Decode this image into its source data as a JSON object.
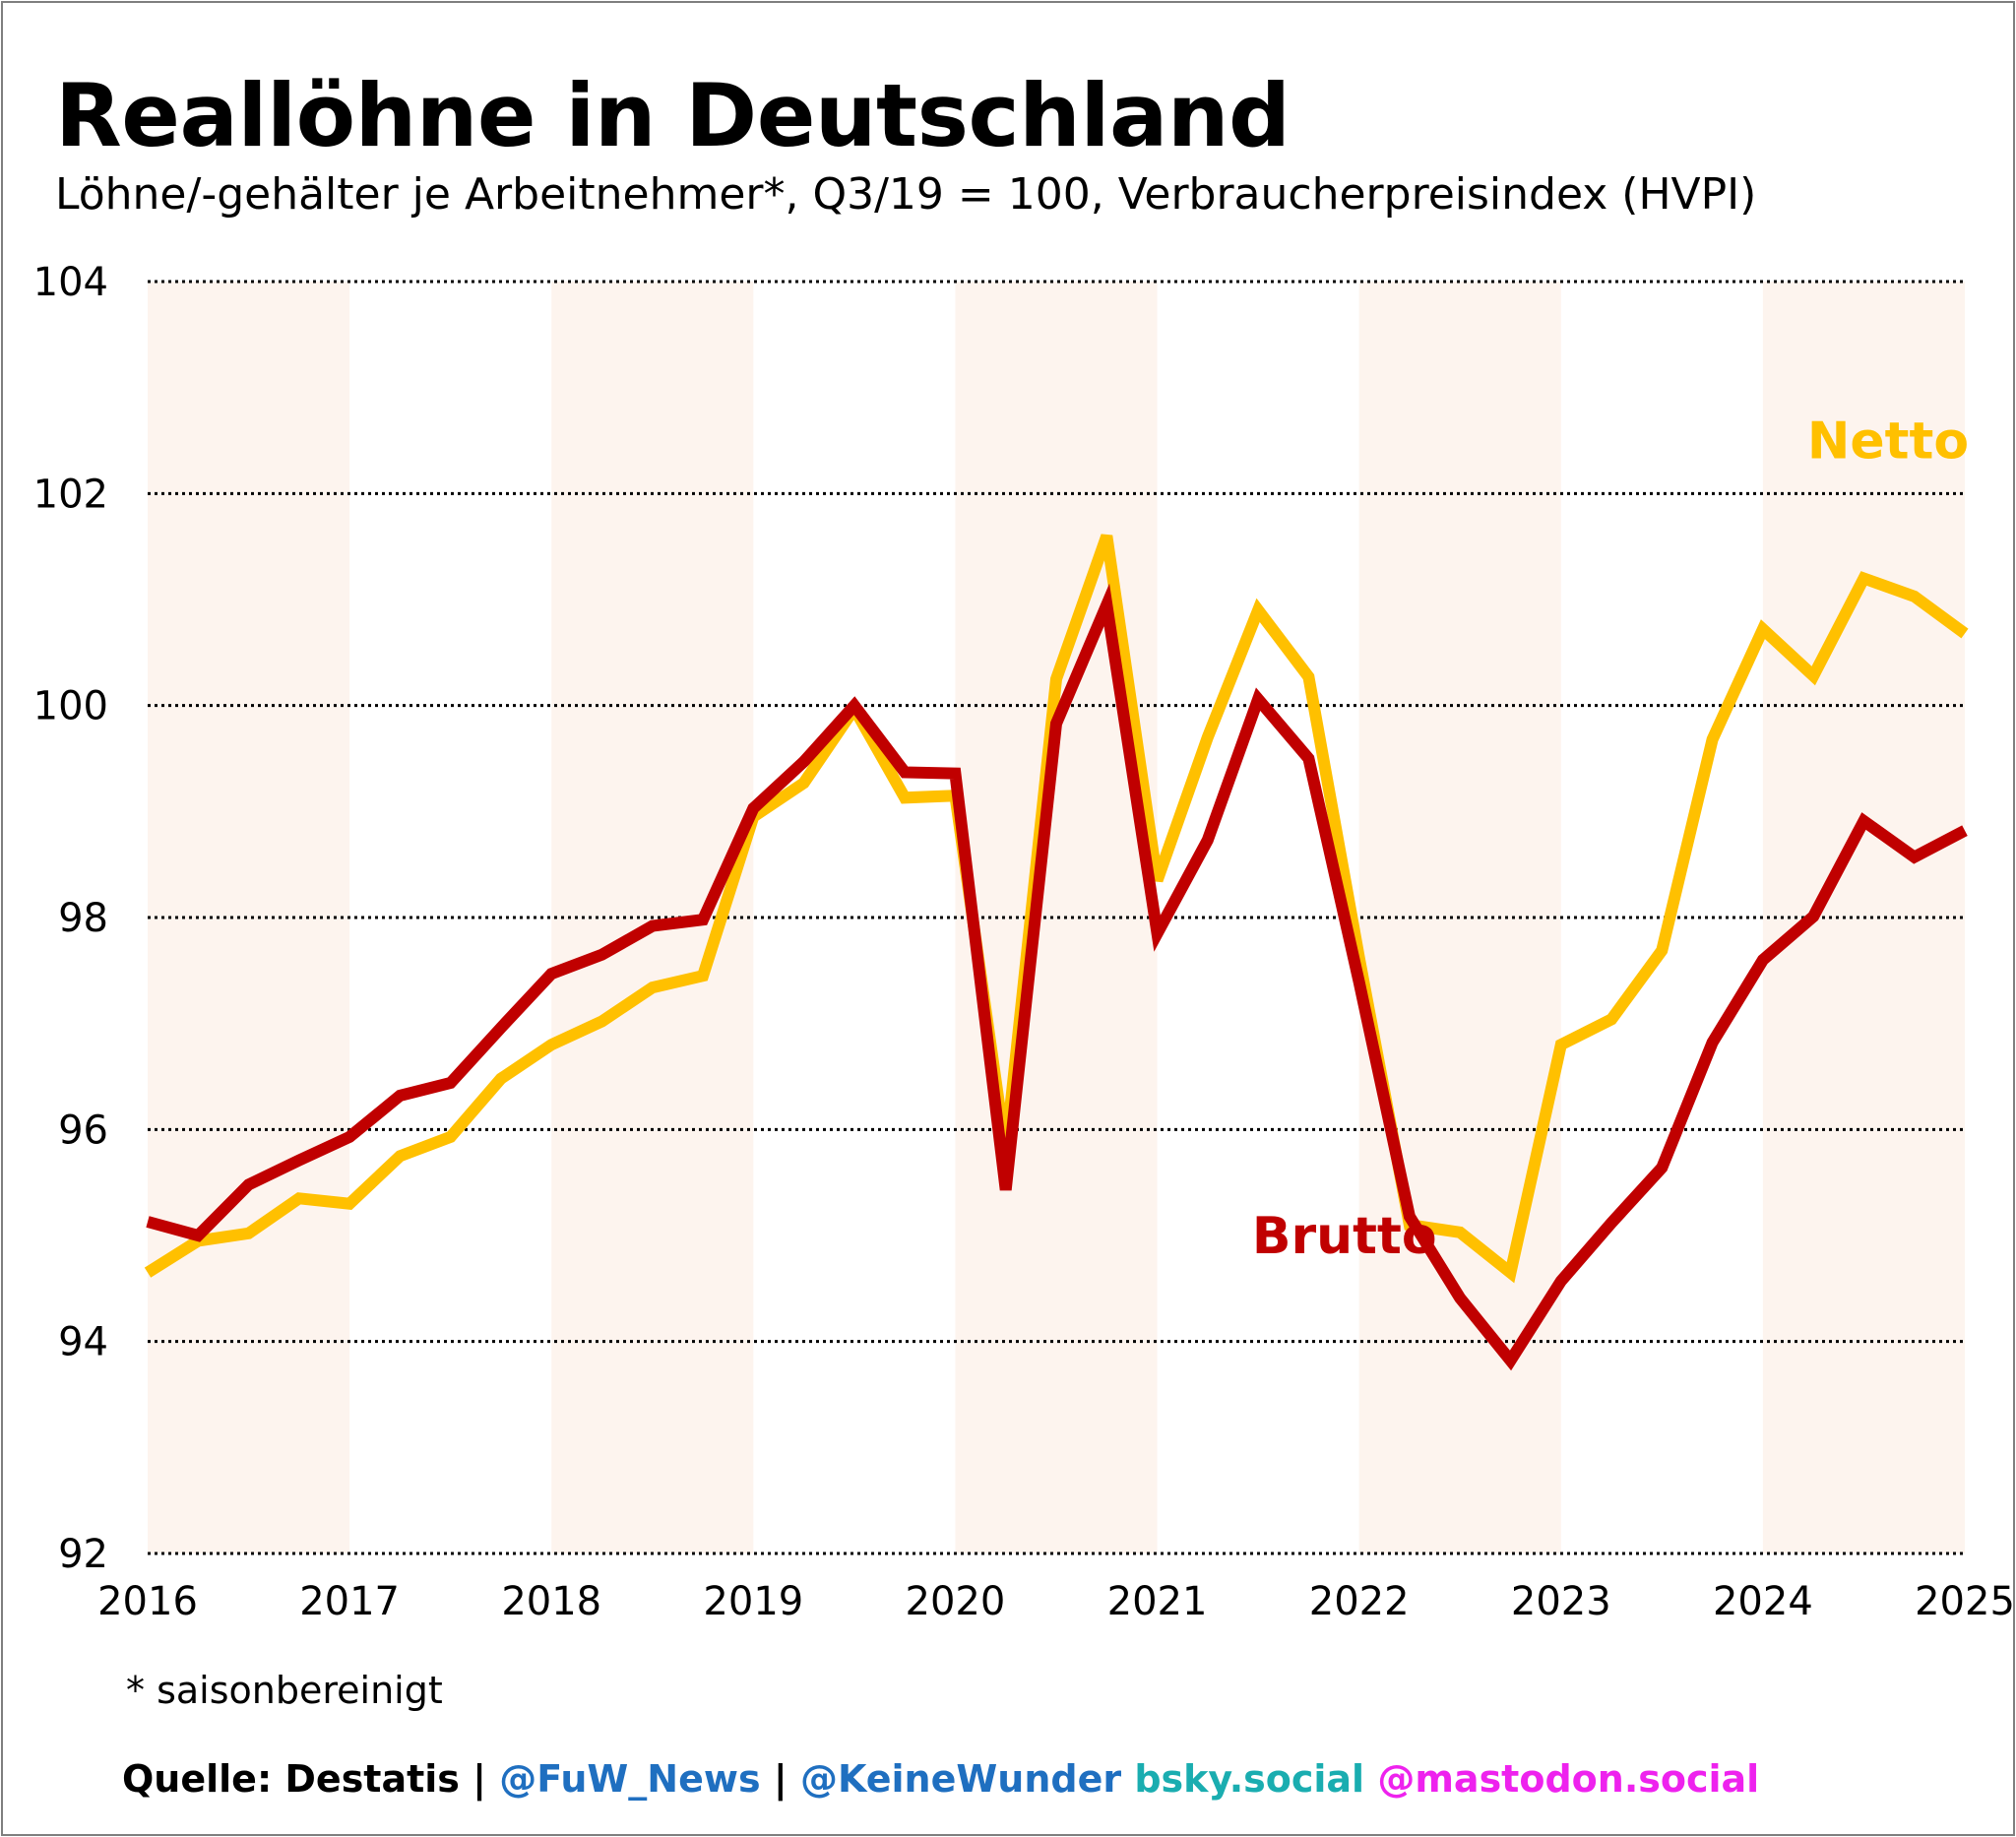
{
  "chart_data": {
    "type": "line",
    "title": "Reallöhne in Deutschland",
    "subtitle": "Löhne/-gehälter je Arbeitnehmer*, Q3/19 = 100, Verbraucherpreisindex (HVPI)",
    "ylim": [
      92,
      104
    ],
    "y_ticks": [
      92,
      94,
      96,
      98,
      100,
      102,
      104
    ],
    "xlim": [
      2016,
      2025
    ],
    "x_ticks": [
      2016,
      2017,
      2018,
      2019,
      2020,
      2021,
      2022,
      2023,
      2024,
      2025
    ],
    "grid": "horizontal dotted",
    "shaded_years": [
      2016,
      2018,
      2020,
      2022,
      2024
    ],
    "x": [
      2016.0,
      2016.25,
      2016.5,
      2016.75,
      2017.0,
      2017.25,
      2017.5,
      2017.75,
      2018.0,
      2018.25,
      2018.5,
      2018.75,
      2019.0,
      2019.25,
      2019.5,
      2019.75,
      2020.0,
      2020.25,
      2020.5,
      2020.75,
      2021.0,
      2021.25,
      2021.5,
      2021.75,
      2022.0,
      2022.25,
      2022.5,
      2022.75,
      2023.0,
      2023.25,
      2023.5,
      2023.75,
      2024.0,
      2024.25,
      2024.5,
      2024.75,
      2025.0
    ],
    "series": [
      {
        "name": "Netto",
        "color": "#ffc000",
        "label_position": [
          2024.0,
          102.5
        ],
        "values": [
          94.65,
          94.95,
          95.02,
          95.35,
          95.3,
          95.75,
          95.93,
          96.48,
          96.8,
          97.02,
          97.34,
          97.45,
          98.95,
          99.27,
          99.97,
          99.13,
          99.15,
          95.8,
          100.25,
          101.6,
          98.35,
          99.7,
          100.9,
          100.27,
          97.62,
          95.1,
          95.03,
          94.65,
          96.8,
          97.04,
          97.69,
          99.68,
          100.72,
          100.28,
          101.2,
          101.03,
          100.68
        ]
      },
      {
        "name": "Brutto",
        "color": "#c00000",
        "label_position": [
          2021.25,
          95.0
        ],
        "values": [
          95.13,
          95.0,
          95.48,
          95.71,
          95.93,
          96.32,
          96.44,
          96.96,
          97.47,
          97.65,
          97.92,
          97.98,
          99.03,
          99.47,
          100.0,
          99.37,
          99.36,
          95.43,
          99.83,
          100.95,
          97.85,
          98.73,
          100.06,
          99.5,
          97.39,
          95.18,
          94.41,
          93.82,
          94.57,
          95.12,
          95.64,
          96.82,
          97.6,
          98.01,
          98.91,
          98.57,
          98.82
        ]
      }
    ]
  },
  "footnote": "* saisonbereinigt",
  "source": {
    "prefix": "Quelle: Destatis | ",
    "fuw": "@FuW_News",
    "sep": " | ",
    "keine": "@KeineWunder",
    "space": " ",
    "bsky": "bsky.social",
    "space2": " ",
    "mastodon": "@mastodon.social",
    "colors": {
      "prefix": "#000000",
      "fuw": "#1f6fc0",
      "keine": "#1f6fc0",
      "bsky": "#1aadb0",
      "mastodon": "#ee22ee"
    }
  }
}
